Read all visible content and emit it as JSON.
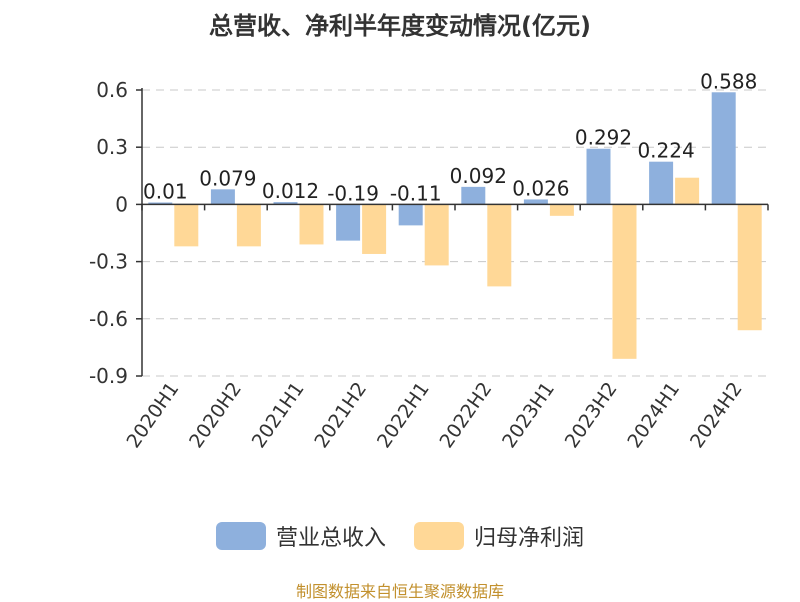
{
  "title": "总营收、净利半年度变动情况(亿元)",
  "source": "制图数据来自恒生聚源数据库",
  "colors": {
    "revenue": "#8eb0dd",
    "profit": "#ffd897",
    "source_text": "#c2902d",
    "grid": "#c8c8c8",
    "axis": "#333333"
  },
  "chart_data": {
    "type": "bar",
    "categories": [
      "2020H1",
      "2020H2",
      "2021H1",
      "2021H2",
      "2022H1",
      "2022H2",
      "2023H1",
      "2023H2",
      "2024H1",
      "2024H2"
    ],
    "series": [
      {
        "name": "营业总收入",
        "values": [
          0.01,
          0.079,
          0.012,
          -0.19,
          -0.11,
          0.092,
          0.026,
          0.292,
          0.224,
          0.588
        ]
      },
      {
        "name": "归母净利润",
        "values": [
          -0.22,
          -0.22,
          -0.21,
          -0.26,
          -0.32,
          -0.43,
          -0.06,
          -0.81,
          0.14,
          -0.66
        ]
      }
    ],
    "revenue_labels": [
      "0.01",
      "0.079",
      "0.012",
      "-0.19",
      "-0.11",
      "0.092",
      "0.026",
      "0.292",
      "0.224",
      "0.588"
    ],
    "yticks": [
      "0.6",
      "0.3",
      "0",
      "-0.3",
      "-0.6",
      "-0.9"
    ],
    "ylim": [
      -0.9,
      0.6
    ],
    "grid": true,
    "legend": "bottom"
  }
}
